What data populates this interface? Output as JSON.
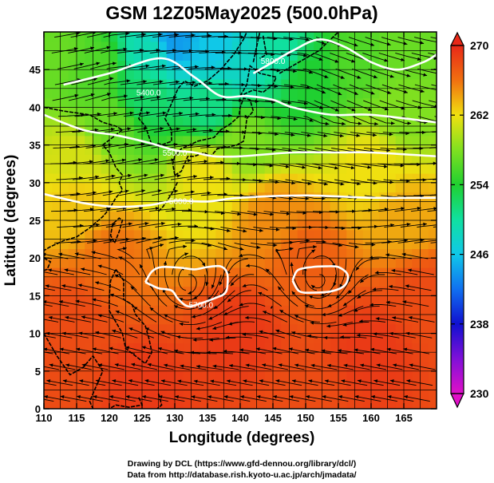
{
  "figure": {
    "title": "GSM 12Z05May2025 (500.0hPa)",
    "xlabel": "Longitude (degrees)",
    "ylabel": "Latitude  (degrees)",
    "credit_line1": "Drawing by DCL (https://www.gfd-dennou.org/library/dcl/)",
    "credit_line2": "Data from http://database.rish.kyoto-u.ac.jp/arch/jmadata/"
  },
  "chart_data": {
    "type": "heatmap",
    "variable": "temperature (K) with geopotential height contours and wind streamlines",
    "xlim": [
      110,
      170
    ],
    "ylim": [
      0,
      50
    ],
    "x_ticks": [
      110,
      115,
      120,
      125,
      130,
      135,
      140,
      145,
      150,
      155,
      160,
      165
    ],
    "y_ticks": [
      0,
      5,
      10,
      15,
      20,
      25,
      30,
      35,
      40,
      45
    ],
    "colorbar": {
      "min": 230,
      "max": 270,
      "tick_values": [
        230,
        238,
        246,
        254,
        262,
        270
      ],
      "tick_labels": [
        "230",
        "238",
        "246",
        "254",
        "262",
        "270"
      ],
      "stops": [
        {
          "value": 230,
          "color": "#e010c8"
        },
        {
          "value": 234,
          "color": "#8010d8"
        },
        {
          "value": 238,
          "color": "#1010d0"
        },
        {
          "value": 242,
          "color": "#1070f0"
        },
        {
          "value": 246,
          "color": "#10c8e8"
        },
        {
          "value": 250,
          "color": "#10e0a0"
        },
        {
          "value": 254,
          "color": "#20d030"
        },
        {
          "value": 258,
          "color": "#80e020"
        },
        {
          "value": 262,
          "color": "#f0e010"
        },
        {
          "value": 266,
          "color": "#f07010"
        },
        {
          "value": 270,
          "color": "#e82818"
        }
      ]
    },
    "contours": [
      {
        "label": "5400.0",
        "points": [
          [
            113,
            43
          ],
          [
            120,
            44.5
          ],
          [
            128,
            46.5
          ],
          [
            133,
            44
          ],
          [
            137,
            41.5
          ],
          [
            141,
            41.5
          ],
          [
            145,
            41
          ],
          [
            148,
            40
          ],
          [
            154,
            39
          ],
          [
            160,
            39
          ],
          [
            170,
            38
          ]
        ],
        "label_at": [
          126,
          42
        ]
      },
      {
        "label": "5500.0",
        "points": [
          [
            110,
            39
          ],
          [
            116,
            37
          ],
          [
            121,
            36.3
          ],
          [
            126,
            35.3
          ],
          [
            130,
            34.3
          ],
          [
            133,
            34
          ],
          [
            136,
            33.5
          ],
          [
            140,
            33.5
          ],
          [
            148,
            34
          ],
          [
            155,
            34
          ],
          [
            160,
            34
          ],
          [
            170,
            33.5
          ]
        ],
        "label_at": [
          130,
          34
        ]
      },
      {
        "label": "5600.0",
        "points": [
          [
            110,
            28.5
          ],
          [
            116,
            27.3
          ],
          [
            121,
            26.8
          ],
          [
            126,
            27
          ],
          [
            130,
            27.6
          ],
          [
            135,
            27.5
          ],
          [
            140,
            28
          ],
          [
            150,
            28.3
          ],
          [
            160,
            28
          ],
          [
            170,
            28
          ]
        ],
        "label_at": [
          131,
          27.6
        ]
      },
      {
        "label": "5700.0",
        "points": [
          [
            125.5,
            16.8
          ],
          [
            126.5,
            18.2
          ],
          [
            128,
            18.8
          ],
          [
            131,
            18.7
          ],
          [
            133,
            18.5
          ],
          [
            135,
            18.8
          ],
          [
            137,
            18.9
          ],
          [
            138,
            18
          ],
          [
            138,
            16
          ],
          [
            137.5,
            15.2
          ],
          [
            136.5,
            14.8
          ],
          [
            134,
            14
          ],
          [
            132,
            13.6
          ],
          [
            130.5,
            14.6
          ],
          [
            129.5,
            15.7
          ],
          [
            127.5,
            16
          ],
          [
            125.5,
            16.8
          ]
        ],
        "label_at": [
          134,
          13.8
        ]
      },
      {
        "label": "",
        "points": [
          [
            148,
            17
          ],
          [
            148.8,
            18.4
          ],
          [
            151,
            18.8
          ],
          [
            153,
            18.9
          ],
          [
            155,
            18.8
          ],
          [
            156.4,
            17.8
          ],
          [
            156,
            16.4
          ],
          [
            154,
            15.6
          ],
          [
            151,
            15.4
          ],
          [
            149,
            15.6
          ],
          [
            148,
            17
          ]
        ],
        "label_at": null
      },
      {
        "label": "5800.0",
        "points": [
          [
            142,
            44.5
          ],
          [
            145,
            46
          ],
          [
            148,
            47.5
          ],
          [
            152,
            49
          ],
          [
            156,
            48
          ],
          [
            160,
            46
          ],
          [
            164,
            45
          ],
          [
            168,
            46
          ],
          [
            170,
            47
          ]
        ],
        "label_at": [
          145,
          46.2
        ]
      }
    ],
    "temperature_field": {
      "description": "Approximate 500 hPa temperature (K) influence points used to reconstruct the shaded field",
      "anchors": [
        [
          130,
          49,
          244
        ],
        [
          136,
          48,
          246
        ],
        [
          140,
          46,
          248
        ],
        [
          126,
          47,
          249
        ],
        [
          146,
          47,
          250
        ],
        [
          118,
          45,
          256
        ],
        [
          112,
          47,
          257
        ],
        [
          125,
          42,
          252
        ],
        [
          136,
          40,
          251
        ],
        [
          150,
          44,
          254
        ],
        [
          158,
          46,
          256
        ],
        [
          165,
          47,
          257
        ],
        [
          120,
          38,
          257
        ],
        [
          140,
          36,
          258
        ],
        [
          165,
          40,
          258
        ],
        [
          115,
          33,
          261
        ],
        [
          135,
          31,
          262
        ],
        [
          160,
          32,
          262
        ],
        [
          115,
          27,
          263
        ],
        [
          145,
          25,
          265
        ],
        [
          165,
          25,
          264
        ],
        [
          120,
          20,
          266
        ],
        [
          150,
          20,
          267
        ],
        [
          115,
          12,
          268
        ],
        [
          140,
          10,
          269
        ],
        [
          160,
          8,
          269
        ],
        [
          125,
          3,
          269
        ],
        [
          150,
          2,
          268
        ],
        [
          112,
          5,
          268
        ],
        [
          168,
          15,
          268
        ]
      ]
    }
  },
  "map": {
    "coast_color": "#000000",
    "grid_color": "#000000",
    "contour_color": "#ffffff"
  }
}
